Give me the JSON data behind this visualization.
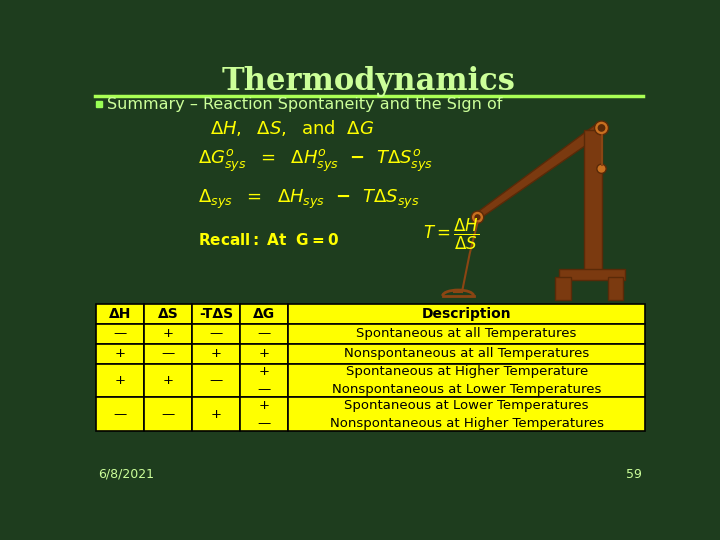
{
  "bg_color": "#1e3d1e",
  "title": "Thermodynamics",
  "title_color": "#ccff99",
  "title_fontsize": 22,
  "separator_color": "#aaff55",
  "bullet_color": "#99ff55",
  "subtitle": "Summary – Reaction Spontaneity and the Sign of",
  "subtitle_color": "#ccff99",
  "subtitle_fontsize": 11.5,
  "formula_color": "#ffff00",
  "date_text": "6/8/2021",
  "page_num": "59",
  "footer_color": "#ccff99",
  "table_header_bg": "#ffff00",
  "table_cell_bg": "#ffff00",
  "table_border_color": "#000000",
  "table_text_color": "#000000",
  "table_header_fontsize": 10,
  "table_cell_fontsize": 9.5,
  "headers": [
    "ΔH",
    "ΔS",
    "-TΔS",
    "ΔG",
    "Description"
  ],
  "rows": [
    [
      "—",
      "+",
      "—",
      "—",
      "Spontaneous at all Temperatures"
    ],
    [
      "+",
      "—",
      "+",
      "+",
      "Nonspontaneous at all Temperatures"
    ],
    [
      "+",
      "+",
      "—",
      "+\n—",
      "Spontaneous at Higher Temperature\nNonspontaneous at Lower Temperatures"
    ],
    [
      "—",
      "—",
      "+",
      "+\n—",
      "Spontaneous at Lower Temperatures\nNonspontaneous at Higher Temperatures"
    ]
  ],
  "crane_color": "#7B3A10",
  "crane_dark": "#5a2a08",
  "chain_color": "#8B4513"
}
